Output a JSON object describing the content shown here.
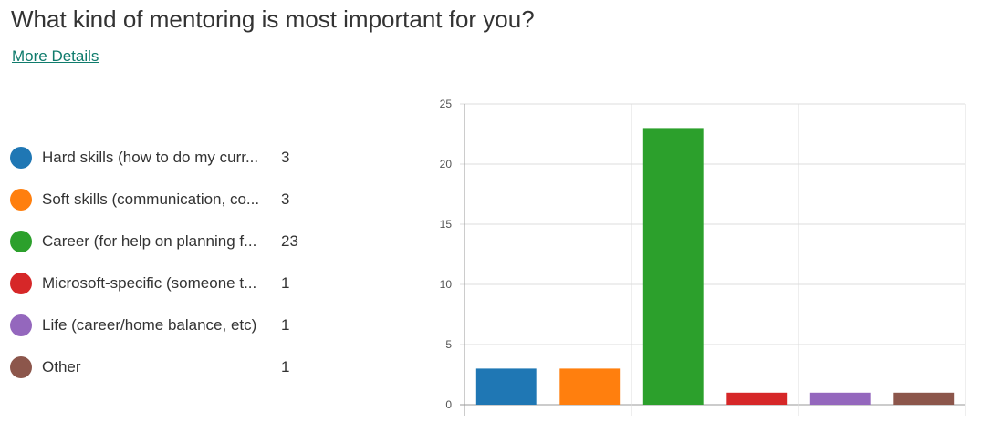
{
  "header": {
    "title": "What kind of mentoring is most important for you?",
    "details_link": "More Details"
  },
  "legend": [
    {
      "label": "Hard skills (how to do my curr...",
      "count": "3",
      "color": "#1f77b4"
    },
    {
      "label": "Soft skills (communication, co...",
      "count": "3",
      "color": "#ff7f0e"
    },
    {
      "label": "Career (for help on planning f...",
      "count": "23",
      "color": "#2ca02c"
    },
    {
      "label": "Microsoft-specific (someone t...",
      "count": "1",
      "color": "#d62728"
    },
    {
      "label": "Life (career/home balance, etc)",
      "count": "1",
      "color": "#9467bd"
    },
    {
      "label": "Other",
      "count": "1",
      "color": "#8c564b"
    }
  ],
  "chart_data": {
    "type": "bar",
    "categories": [
      "Hard skills (how to do my curr...",
      "Soft skills (communication, co...",
      "Career (for help on planning f...",
      "Microsoft-specific (someone t...",
      "Life (career/home balance, etc)",
      "Other"
    ],
    "values": [
      3,
      3,
      23,
      1,
      1,
      1
    ],
    "colors": [
      "#1f77b4",
      "#ff7f0e",
      "#2ca02c",
      "#d62728",
      "#9467bd",
      "#8c564b"
    ],
    "ylim": [
      0,
      25
    ],
    "yticks": [
      0,
      5,
      10,
      15,
      20,
      25
    ],
    "grid": true,
    "legend_position": "left"
  }
}
